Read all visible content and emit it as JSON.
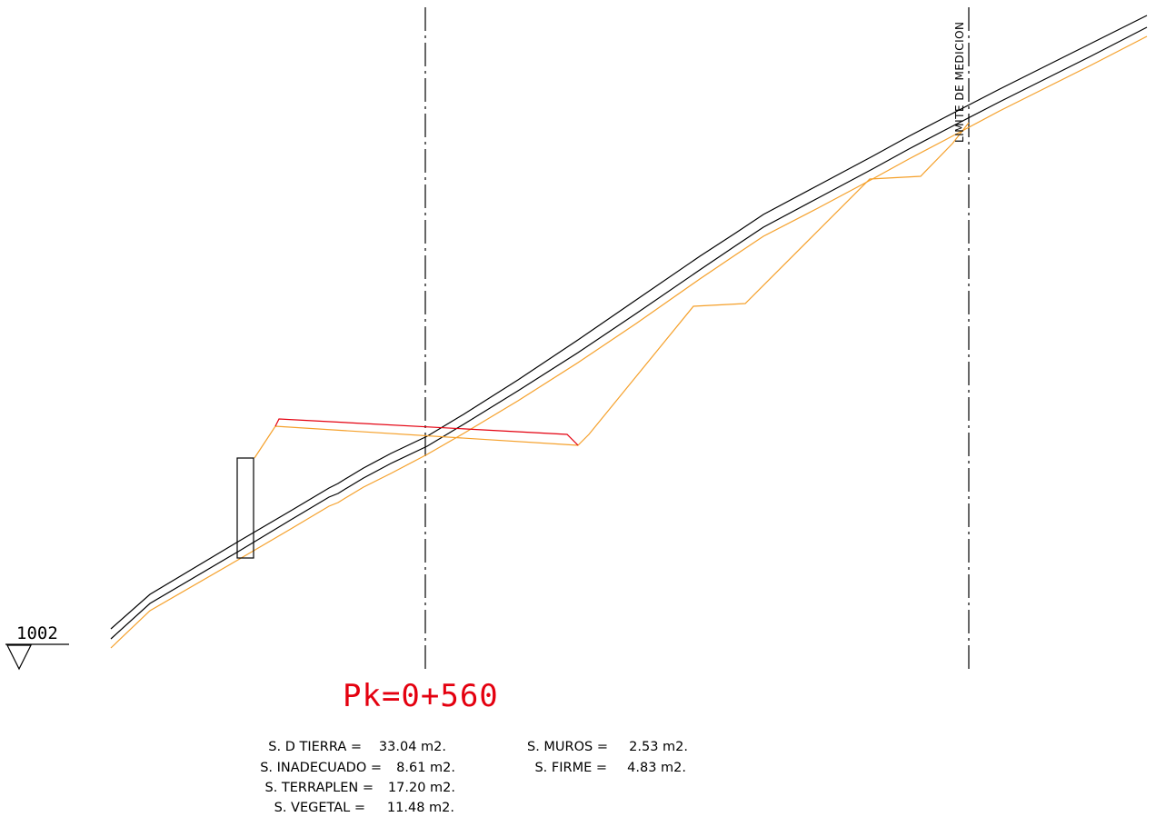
{
  "elevation_label": "1002",
  "limit_label": "LIMITE DE MEDICION",
  "station_label": "Pk=0+560",
  "areas_left": [
    {
      "label": "S. D TIERRA =",
      "value": "33.04 m2."
    },
    {
      "label": "S. INADECUADO =",
      "value": "8.61 m2."
    },
    {
      "label": "S. TERRAPLEN =",
      "value": "17.20 m2."
    },
    {
      "label": "S. VEGETAL =",
      "value": "11.48 m2."
    }
  ],
  "areas_right": [
    {
      "label": "S. MUROS =",
      "value": "2.53 m2."
    },
    {
      "label": "S. FIRME =",
      "value": "4.83 m2."
    }
  ],
  "colors": {
    "terrain": "#000000",
    "subgrade": "#f5a02a",
    "fill": "#e4000f",
    "axis": "#000000"
  }
}
